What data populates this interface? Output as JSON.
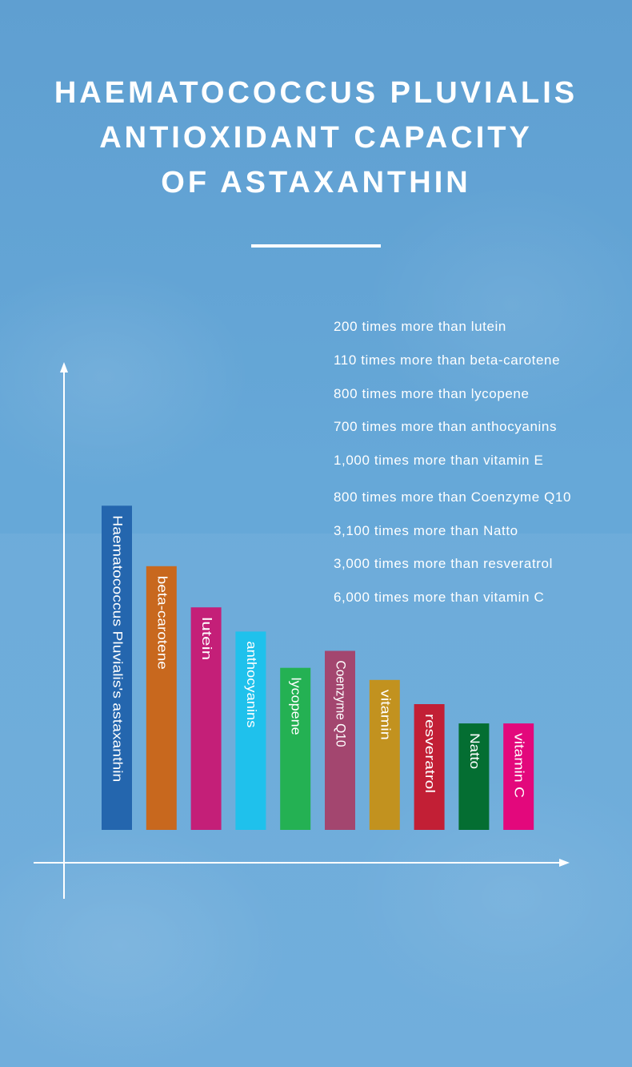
{
  "page": {
    "title_lines": [
      "HAEMATOCOCCUS PLUVIALIS",
      "ANTIOXIDANT CAPACITY",
      "OF ASTAXANTHIN"
    ],
    "background_color": "#66a8d8",
    "background_image": "two smiling faces, tinted blue"
  },
  "comparisons": [
    "200 times more than lutein",
    "110 times more than beta-carotene",
    "800 times more than lycopene",
    "700 times more than anthocyanins",
    "1,000 times more than vitamin E",
    "800 times more than Coenzyme Q10",
    "3,100 times more than Natto",
    "3,000 times more than resveratrol",
    "6,000 times more than vitamin C"
  ],
  "chart_data": {
    "type": "bar",
    "title": "",
    "xlabel": "",
    "ylabel": "",
    "grid": false,
    "axes": "arrows, no tick labels",
    "ylim": [
      0,
      100
    ],
    "categories": [
      "Haematococcus Pluvialis's astaxanthin",
      "beta-carotene",
      "lutein",
      "anthocyanins",
      "lycopene",
      "Coenzyme Q10",
      "vitamin",
      "resveratrol",
      "Natto",
      "vitamin C"
    ],
    "values": [
      67,
      54.5,
      46,
      41,
      33.5,
      37,
      31,
      26,
      22,
      22
    ],
    "colors": [
      "#2466ae",
      "#c8681e",
      "#c41f78",
      "#1fc1ec",
      "#24b153",
      "#a3466f",
      "#c2921f",
      "#c21f35",
      "#046e32",
      "#e3087c"
    ]
  }
}
